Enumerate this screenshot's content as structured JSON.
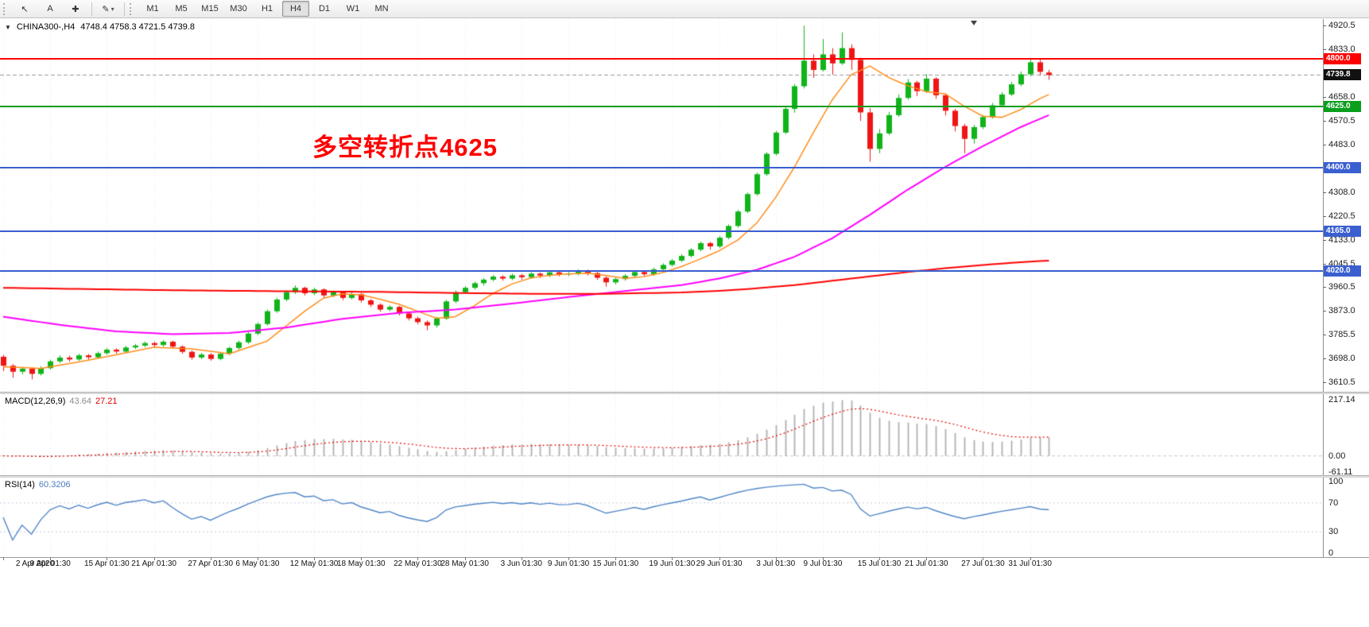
{
  "toolbar": {
    "tools": [
      {
        "id": "cursor",
        "glyph": "↖"
      },
      {
        "id": "text-label",
        "glyph": "A"
      },
      {
        "id": "crosshair",
        "glyph": "✚"
      }
    ],
    "draw_tool": {
      "glyph": "✎",
      "caret": "▾"
    },
    "timeframes": [
      {
        "label": "M1"
      },
      {
        "label": "M5"
      },
      {
        "label": "M15"
      },
      {
        "label": "M30"
      },
      {
        "label": "H1"
      },
      {
        "label": "H4",
        "active": true
      },
      {
        "label": "D1"
      },
      {
        "label": "W1"
      },
      {
        "label": "MN"
      }
    ]
  },
  "main_chart": {
    "dropdown_glyph": "▼",
    "symbol_timeframe": "CHINA300-,H4",
    "ohlc_text": "4748.4 4758.3 4721.5 4739.8",
    "annotation": {
      "text": "多空转折点4625",
      "color": "#ff0000"
    },
    "bid_price": 4739.8,
    "levels": [
      {
        "price": 4800,
        "color": "#ff0000"
      },
      {
        "price": 4625,
        "color": "#0a9e1d"
      },
      {
        "price": 4400,
        "color": "#3a5fd0"
      },
      {
        "price": 4165,
        "color": "#3a5fd0"
      },
      {
        "price": 4020,
        "color": "#3a5fd0"
      }
    ],
    "price_tags": [
      {
        "label": "4800.0",
        "price": 4800,
        "bg": "#ff0000"
      },
      {
        "label": "4739.8",
        "price": 4739.8,
        "bg": "#111111"
      },
      {
        "label": "4625.0",
        "price": 4625,
        "bg": "#0a9e1d"
      },
      {
        "label": "4400.0",
        "price": 4400,
        "bg": "#3a5fd0"
      },
      {
        "label": "4165.0",
        "price": 4165,
        "bg": "#3a5fd0"
      },
      {
        "label": "4020.0",
        "price": 4020,
        "bg": "#3a5fd0"
      }
    ],
    "price_ticks": [
      {
        "label": "4920.5",
        "price": 4920.5
      },
      {
        "label": "4833.0",
        "price": 4833
      },
      {
        "label": "4658.0",
        "price": 4658
      },
      {
        "label": "4570.5",
        "price": 4570.5
      },
      {
        "label": "4483.0",
        "price": 4483
      },
      {
        "label": "4308.0",
        "price": 4308
      },
      {
        "label": "4220.5",
        "price": 4220.5
      },
      {
        "label": "4133.0",
        "price": 4133
      },
      {
        "label": "4045.5",
        "price": 4045.5
      },
      {
        "label": "3960.5",
        "price": 3960.5
      },
      {
        "label": "3873.0",
        "price": 3873
      },
      {
        "label": "3785.5",
        "price": 3785.5
      },
      {
        "label": "3698.0",
        "price": 3698
      },
      {
        "label": "3610.5",
        "price": 3610.5
      }
    ]
  },
  "macd_panel": {
    "name": "MACD(12,26,9)",
    "value_main": "43.64",
    "value_signal": "27.21",
    "axis": [
      {
        "label": "217.14",
        "v": 217.14
      },
      {
        "label": "0.00",
        "v": 0
      },
      {
        "label": "-61.11",
        "v": -61.11
      }
    ]
  },
  "rsi_panel": {
    "name": "RSI(14)",
    "value": "60.3206",
    "axis": [
      {
        "label": "100",
        "v": 100
      },
      {
        "label": "70",
        "v": 70
      },
      {
        "label": "30",
        "v": 30
      },
      {
        "label": "0",
        "v": 0
      }
    ],
    "levels": [
      70,
      30
    ]
  },
  "time_axis": {
    "ticks": [
      {
        "t": "2 Apr 2020",
        "i": 0
      },
      {
        "t": "9 Apr 01:30",
        "i": 5
      },
      {
        "t": "15 Apr 01:30",
        "i": 11
      },
      {
        "t": "21 Apr 01:30",
        "i": 16
      },
      {
        "t": "27 Apr 01:30",
        "i": 22
      },
      {
        "t": "6 May 01:30",
        "i": 27
      },
      {
        "t": "12 May 01:30",
        "i": 33
      },
      {
        "t": "18 May 01:30",
        "i": 38
      },
      {
        "t": "22 May 01:30",
        "i": 44
      },
      {
        "t": "28 May 01:30",
        "i": 49
      },
      {
        "t": "3 Jun 01:30",
        "i": 55
      },
      {
        "t": "9 Jun 01:30",
        "i": 60
      },
      {
        "t": "15 Jun 01:30",
        "i": 65
      },
      {
        "t": "19 Jun 01:30",
        "i": 71
      },
      {
        "t": "29 Jun 01:30",
        "i": 76
      },
      {
        "t": "3 Jul 01:30",
        "i": 82
      },
      {
        "t": "9 Jul 01:30",
        "i": 87
      },
      {
        "t": "15 Jul 01:30",
        "i": 93
      },
      {
        "t": "21 Jul 01:30",
        "i": 98
      },
      {
        "t": "27 Jul 01:30",
        "i": 104
      },
      {
        "t": "31 Jul 01:30",
        "i": 109
      }
    ]
  },
  "colors": {
    "up": "#10b41a",
    "down": "#ef1515",
    "macd_hist": "#b0b0b0",
    "macd_signal": "#e00000",
    "rsi": "#4f86c6",
    "grid": "rgba(0,0,0,0.10)",
    "bid_line": "#9a9a9a",
    "rsi_levels": "#c9c9e0",
    "macd_zero": "#c8c8c8"
  },
  "chart_data": {
    "type": "candlestick",
    "symbol": "CHINA300-",
    "timeframe": "H4",
    "last_ohlc": {
      "open": 4748.4,
      "high": 4758.3,
      "low": 4721.5,
      "close": 4739.8
    },
    "price_range": [
      3588,
      4933
    ],
    "candles": [
      [
        3705,
        3712,
        3652,
        3672
      ],
      [
        3672,
        3678,
        3628,
        3650
      ],
      [
        3650,
        3668,
        3641,
        3661
      ],
      [
        3661,
        3666,
        3622,
        3642
      ],
      [
        3642,
        3670,
        3636,
        3663
      ],
      [
        3663,
        3694,
        3658,
        3688
      ],
      [
        3688,
        3710,
        3682,
        3702
      ],
      [
        3702,
        3709,
        3687,
        3695
      ],
      [
        3695,
        3716,
        3690,
        3710
      ],
      [
        3710,
        3715,
        3695,
        3703
      ],
      [
        3703,
        3724,
        3698,
        3718
      ],
      [
        3718,
        3737,
        3712,
        3731
      ],
      [
        3731,
        3736,
        3716,
        3724
      ],
      [
        3724,
        3745,
        3719,
        3739
      ],
      [
        3739,
        3752,
        3733,
        3746
      ],
      [
        3746,
        3761,
        3740,
        3755
      ],
      [
        3755,
        3760,
        3741,
        3748
      ],
      [
        3748,
        3766,
        3742,
        3760
      ],
      [
        3760,
        3764,
        3736,
        3742
      ],
      [
        3742,
        3747,
        3716,
        3723
      ],
      [
        3723,
        3728,
        3694,
        3702
      ],
      [
        3702,
        3719,
        3696,
        3713
      ],
      [
        3713,
        3718,
        3690,
        3697
      ],
      [
        3697,
        3722,
        3692,
        3716
      ],
      [
        3716,
        3742,
        3710,
        3737
      ],
      [
        3737,
        3764,
        3731,
        3758
      ],
      [
        3758,
        3796,
        3752,
        3790
      ],
      [
        3790,
        3831,
        3784,
        3825
      ],
      [
        3825,
        3878,
        3820,
        3872
      ],
      [
        3872,
        3921,
        3866,
        3915
      ],
      [
        3915,
        3948,
        3908,
        3942
      ],
      [
        3942,
        3967,
        3935,
        3958
      ],
      [
        3958,
        3962,
        3930,
        3938
      ],
      [
        3938,
        3958,
        3931,
        3952
      ],
      [
        3952,
        3956,
        3922,
        3930
      ],
      [
        3930,
        3948,
        3924,
        3942
      ],
      [
        3942,
        3946,
        3913,
        3921
      ],
      [
        3921,
        3941,
        3915,
        3935
      ],
      [
        3935,
        3939,
        3904,
        3912
      ],
      [
        3912,
        3917,
        3888,
        3896
      ],
      [
        3896,
        3901,
        3870,
        3878
      ],
      [
        3878,
        3894,
        3872,
        3888
      ],
      [
        3888,
        3892,
        3856,
        3864
      ],
      [
        3864,
        3869,
        3838,
        3846
      ],
      [
        3846,
        3852,
        3824,
        3832
      ],
      [
        3832,
        3838,
        3802,
        3820
      ],
      [
        3820,
        3851,
        3812,
        3845
      ],
      [
        3845,
        3914,
        3840,
        3908
      ],
      [
        3908,
        3948,
        3902,
        3942
      ],
      [
        3942,
        3964,
        3936,
        3958
      ],
      [
        3958,
        3981,
        3952,
        3975
      ],
      [
        3975,
        3994,
        3966,
        3988
      ],
      [
        3988,
        4005,
        3982,
        3999
      ],
      [
        3999,
        4004,
        3984,
        3992
      ],
      [
        3992,
        4010,
        3986,
        4004
      ],
      [
        4004,
        4009,
        3988,
        3997
      ],
      [
        3997,
        4016,
        3991,
        4010
      ],
      [
        4010,
        4015,
        3994,
        4003
      ],
      [
        4003,
        4021,
        3997,
        4015
      ],
      [
        4015,
        4020,
        4000,
        4008
      ],
      [
        4008,
        4018,
        4001,
        4010
      ],
      [
        4010,
        4026,
        4004,
        4020
      ],
      [
        4020,
        4025,
        4003,
        4012
      ],
      [
        4012,
        4017,
        3987,
        3995
      ],
      [
        3995,
        4000,
        3962,
        3978
      ],
      [
        3978,
        3996,
        3970,
        3990
      ],
      [
        3990,
        4008,
        3984,
        4002
      ],
      [
        4002,
        4022,
        3996,
        4016
      ],
      [
        4016,
        4021,
        3999,
        4008
      ],
      [
        4008,
        4032,
        4002,
        4026
      ],
      [
        4026,
        4048,
        4020,
        4042
      ],
      [
        4042,
        4064,
        4036,
        4058
      ],
      [
        4058,
        4081,
        4052,
        4075
      ],
      [
        4075,
        4104,
        4069,
        4098
      ],
      [
        4098,
        4128,
        4092,
        4122
      ],
      [
        4122,
        4127,
        4098,
        4110
      ],
      [
        4110,
        4148,
        4104,
        4142
      ],
      [
        4142,
        4191,
        4136,
        4185
      ],
      [
        4185,
        4244,
        4179,
        4238
      ],
      [
        4238,
        4308,
        4232,
        4302
      ],
      [
        4302,
        4381,
        4296,
        4375
      ],
      [
        4375,
        4456,
        4369,
        4450
      ],
      [
        4450,
        4534,
        4444,
        4528
      ],
      [
        4528,
        4621,
        4522,
        4615
      ],
      [
        4615,
        4706,
        4601,
        4698
      ],
      [
        4698,
        4920.5,
        4690,
        4792
      ],
      [
        4792,
        4815,
        4729,
        4758
      ],
      [
        4758,
        4871,
        4752,
        4815
      ],
      [
        4815,
        4838,
        4741,
        4782
      ],
      [
        4782,
        4896,
        4776,
        4838
      ],
      [
        4838,
        4852,
        4758,
        4795
      ],
      [
        4795,
        4803,
        4571,
        4602
      ],
      [
        4602,
        4618,
        4421,
        4468
      ],
      [
        4468,
        4541,
        4452,
        4525
      ],
      [
        4525,
        4604,
        4519,
        4592
      ],
      [
        4592,
        4668,
        4586,
        4655
      ],
      [
        4655,
        4725,
        4649,
        4712
      ],
      [
        4712,
        4718,
        4662,
        4680
      ],
      [
        4680,
        4742,
        4674,
        4726
      ],
      [
        4726,
        4731,
        4652,
        4665
      ],
      [
        4665,
        4672,
        4591,
        4608
      ],
      [
        4608,
        4615,
        4532,
        4552
      ],
      [
        4552,
        4560,
        4452,
        4505
      ],
      [
        4505,
        4556,
        4488,
        4548
      ],
      [
        4548,
        4592,
        4541,
        4585
      ],
      [
        4585,
        4637,
        4579,
        4628
      ],
      [
        4628,
        4676,
        4622,
        4668
      ],
      [
        4668,
        4714,
        4662,
        4705
      ],
      [
        4705,
        4752,
        4698,
        4742
      ],
      [
        4742,
        4801,
        4735,
        4786
      ],
      [
        4786,
        4798,
        4738,
        4751
      ],
      [
        4748.4,
        4758.3,
        4721.5,
        4739.8
      ]
    ],
    "moving_averages": [
      {
        "name": "ma-fast",
        "color": "#ff8c1a",
        "width": 1.5,
        "points": [
          [
            0,
            3668
          ],
          [
            4,
            3662
          ],
          [
            8,
            3686
          ],
          [
            12,
            3712
          ],
          [
            16,
            3740
          ],
          [
            20,
            3734
          ],
          [
            24,
            3716
          ],
          [
            28,
            3762
          ],
          [
            32,
            3872
          ],
          [
            34,
            3920
          ],
          [
            36,
            3936
          ],
          [
            38,
            3932
          ],
          [
            40,
            3916
          ],
          [
            42,
            3898
          ],
          [
            44,
            3872
          ],
          [
            46,
            3846
          ],
          [
            48,
            3852
          ],
          [
            50,
            3892
          ],
          [
            52,
            3938
          ],
          [
            54,
            3972
          ],
          [
            56,
            3994
          ],
          [
            58,
            4004
          ],
          [
            60,
            4009
          ],
          [
            62,
            4012
          ],
          [
            64,
            4003
          ],
          [
            66,
            3993
          ],
          [
            68,
            3999
          ],
          [
            70,
            4014
          ],
          [
            72,
            4036
          ],
          [
            74,
            4064
          ],
          [
            76,
            4094
          ],
          [
            78,
            4134
          ],
          [
            80,
            4196
          ],
          [
            82,
            4290
          ],
          [
            84,
            4402
          ],
          [
            86,
            4528
          ],
          [
            88,
            4648
          ],
          [
            90,
            4740
          ],
          [
            92,
            4772
          ],
          [
            94,
            4730
          ],
          [
            96,
            4700
          ],
          [
            98,
            4678
          ],
          [
            100,
            4670
          ],
          [
            102,
            4625
          ],
          [
            104,
            4588
          ],
          [
            106,
            4584
          ],
          [
            108,
            4612
          ],
          [
            110,
            4652
          ],
          [
            111,
            4668
          ]
        ]
      },
      {
        "name": "ma-medium",
        "color": "#ff00ff",
        "width": 2,
        "points": [
          [
            0,
            3852
          ],
          [
            6,
            3822
          ],
          [
            12,
            3798
          ],
          [
            18,
            3788
          ],
          [
            24,
            3792
          ],
          [
            30,
            3812
          ],
          [
            36,
            3844
          ],
          [
            42,
            3866
          ],
          [
            48,
            3878
          ],
          [
            54,
            3900
          ],
          [
            60,
            3924
          ],
          [
            66,
            3946
          ],
          [
            72,
            3968
          ],
          [
            76,
            3992
          ],
          [
            80,
            4024
          ],
          [
            84,
            4072
          ],
          [
            88,
            4140
          ],
          [
            92,
            4226
          ],
          [
            96,
            4318
          ],
          [
            100,
            4402
          ],
          [
            104,
            4478
          ],
          [
            108,
            4548
          ],
          [
            111,
            4592
          ]
        ]
      },
      {
        "name": "ma-slow",
        "color": "#ff0000",
        "width": 2,
        "points": [
          [
            0,
            3958
          ],
          [
            8,
            3954
          ],
          [
            16,
            3950
          ],
          [
            24,
            3947
          ],
          [
            32,
            3945
          ],
          [
            40,
            3943
          ],
          [
            48,
            3939
          ],
          [
            56,
            3936
          ],
          [
            64,
            3936
          ],
          [
            72,
            3941
          ],
          [
            76,
            3947
          ],
          [
            80,
            3956
          ],
          [
            84,
            3968
          ],
          [
            88,
            3984
          ],
          [
            92,
            4000
          ],
          [
            96,
            4016
          ],
          [
            100,
            4030
          ],
          [
            104,
            4042
          ],
          [
            108,
            4052
          ],
          [
            111,
            4058
          ]
        ]
      }
    ],
    "indicators": {
      "macd": {
        "fast": 12,
        "slow": 26,
        "signal": 9,
        "current": [
          43.64,
          27.21
        ],
        "scale_max": 217.14,
        "view_range": [
          -75,
          240
        ],
        "axis_values": [
          217.14,
          0,
          -61.11
        ]
      },
      "rsi": {
        "period": 14,
        "current": 60.3206,
        "view_range": [
          -5,
          105
        ],
        "levels": [
          70,
          30
        ]
      }
    }
  }
}
